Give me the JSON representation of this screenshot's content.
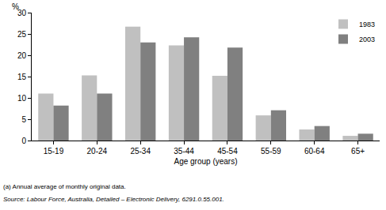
{
  "chart_data": {
    "type": "bar",
    "ylabel": "%",
    "x_label": "Age group (years)",
    "categories": [
      "15-19",
      "20-24",
      "25-34",
      "35-44",
      "45-54",
      "55-59",
      "60-64",
      "65+"
    ],
    "series": [
      {
        "name": "1983",
        "color": "#c0c0c0",
        "values": [
          11.0,
          15.3,
          26.7,
          22.3,
          15.2,
          5.9,
          2.6,
          1.1
        ]
      },
      {
        "name": "2003",
        "color": "#808080",
        "values": [
          8.2,
          11.0,
          23.0,
          24.2,
          21.8,
          7.1,
          3.4,
          1.6
        ]
      }
    ],
    "ylim": [
      0,
      30
    ],
    "yticks": [
      0,
      5,
      10,
      15,
      20,
      25,
      30
    ],
    "grid": false,
    "legend": "top-right",
    "annotations": [
      "(a) Annual average of monthly original data.",
      "Source: Labour Force, Australia, Detailed – Electronic Delivery, 6291.0.55.001."
    ]
  }
}
